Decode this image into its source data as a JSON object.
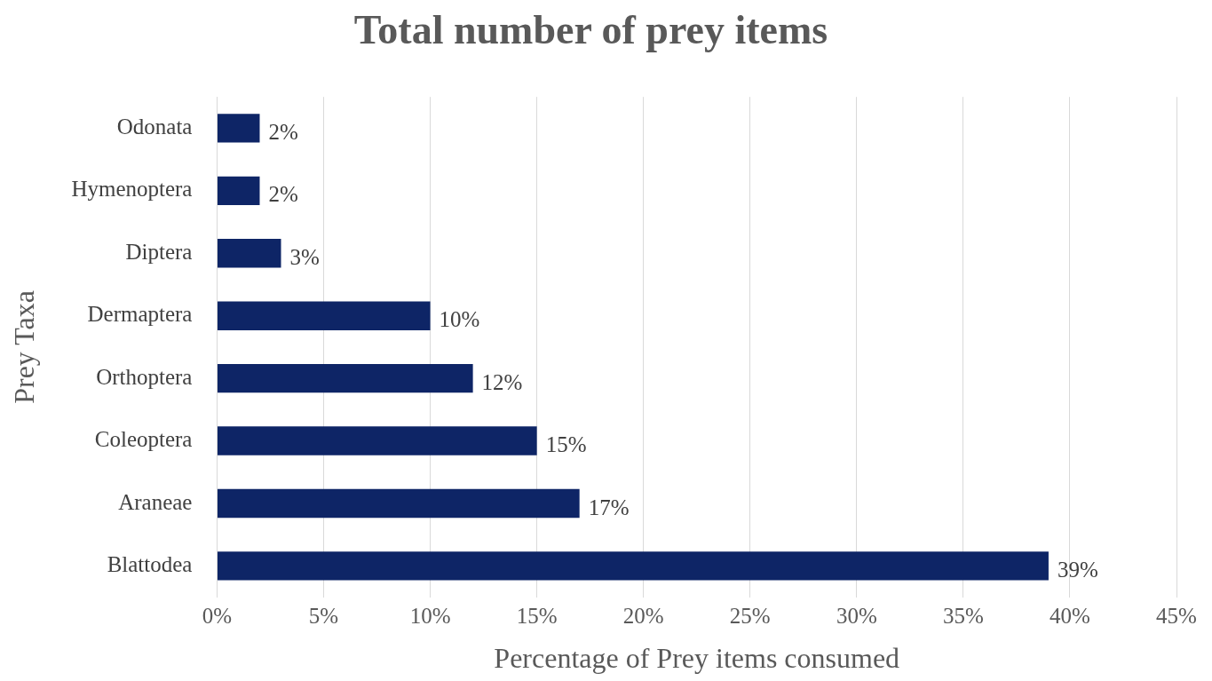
{
  "chart_data": {
    "type": "bar",
    "orientation": "horizontal",
    "title": "Total number of prey items",
    "xlabel": "Percentage of Prey items consumed",
    "ylabel": "Prey Taxa",
    "categories": [
      "Odonata",
      "Hymenoptera",
      "Diptera",
      "Dermaptera",
      "Orthoptera",
      "Coleoptera",
      "Araneae",
      "Blattodea"
    ],
    "values": [
      2,
      2,
      3,
      10,
      12,
      15,
      17,
      39
    ],
    "value_labels": [
      "2%",
      "2%",
      "3%",
      "10%",
      "12%",
      "15%",
      "17%",
      "39%"
    ],
    "color": "#0e2566",
    "xlim": [
      0,
      45
    ],
    "xticks": [
      {
        "value": 0,
        "label": "0%"
      },
      {
        "value": 5,
        "label": "5%"
      },
      {
        "value": 10,
        "label": "10%"
      },
      {
        "value": 15,
        "label": "15%"
      },
      {
        "value": 20,
        "label": "20%"
      },
      {
        "value": 25,
        "label": "25%"
      },
      {
        "value": 30,
        "label": "30%"
      },
      {
        "value": 35,
        "label": "35%"
      },
      {
        "value": 40,
        "label": "40%"
      },
      {
        "value": 45,
        "label": "45%"
      }
    ],
    "grid": "x",
    "legend": false
  }
}
